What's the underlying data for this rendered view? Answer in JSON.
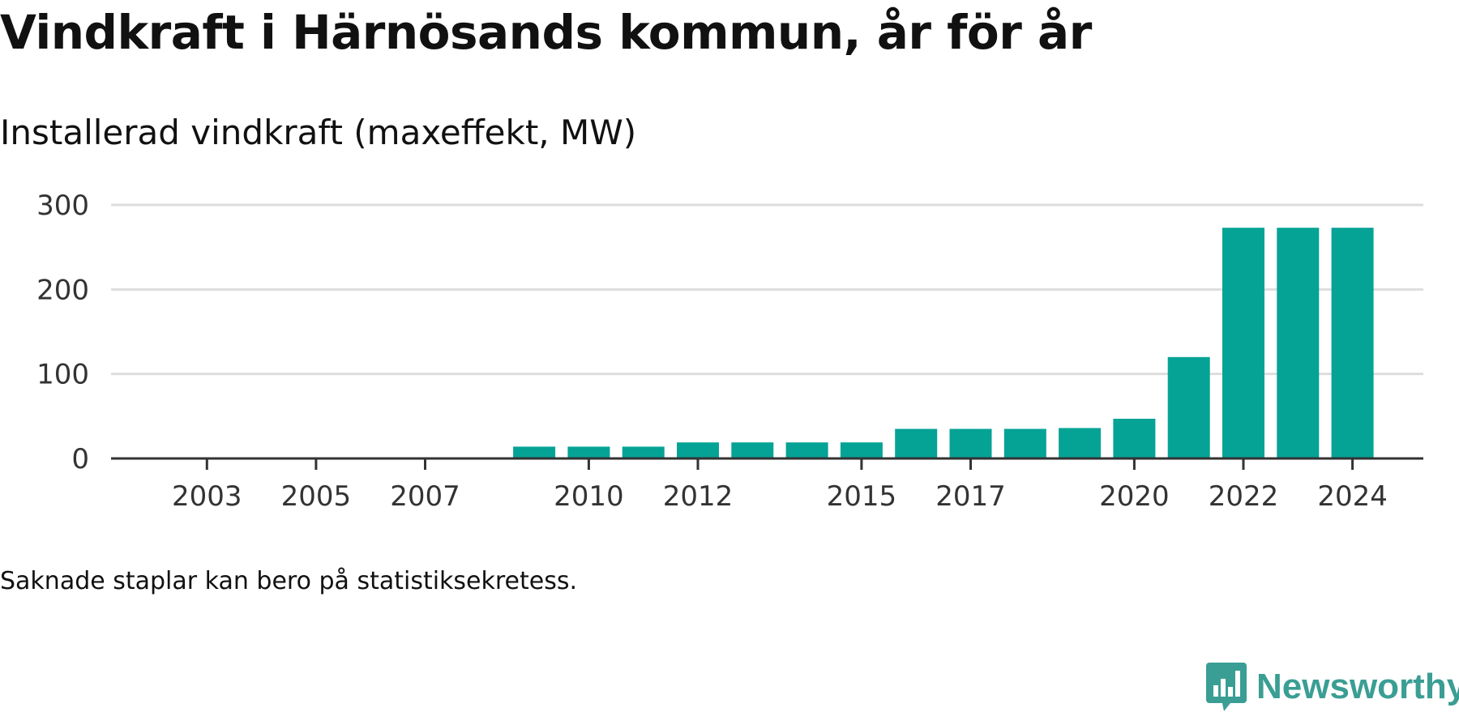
{
  "title": "Vindkraft i Härnösands kommun, år för år",
  "subtitle": "Installerad vindkraft (maxeffekt, MW)",
  "footnote": "Saknade staplar kan bero på statistiksekretess.",
  "brand": {
    "name": "Newsworthy",
    "color": "#3a9e94",
    "icon": "chart-speech-bubble-icon"
  },
  "colors": {
    "bar": "#05a396",
    "grid": "#dddddd",
    "axis": "#333333"
  },
  "chart_data": {
    "type": "bar",
    "categories": [
      "2002",
      "2003",
      "2004",
      "2005",
      "2006",
      "2007",
      "2008",
      "2009",
      "2010",
      "2011",
      "2012",
      "2013",
      "2014",
      "2015",
      "2016",
      "2017",
      "2018",
      "2019",
      "2020",
      "2021",
      "2022",
      "2023",
      "2024"
    ],
    "values": [
      null,
      null,
      null,
      null,
      null,
      null,
      null,
      14,
      14,
      14,
      19,
      19,
      19,
      19,
      35,
      35,
      35,
      36,
      47,
      120,
      273,
      273,
      273
    ],
    "xtick_labels": [
      "2003",
      "2005",
      "2007",
      "2010",
      "2012",
      "2015",
      "2017",
      "2020",
      "2022",
      "2024"
    ],
    "yticks": [
      0,
      100,
      200,
      300
    ],
    "ylim": [
      0,
      300
    ],
    "grid": true,
    "xlabel": "",
    "ylabel": ""
  }
}
